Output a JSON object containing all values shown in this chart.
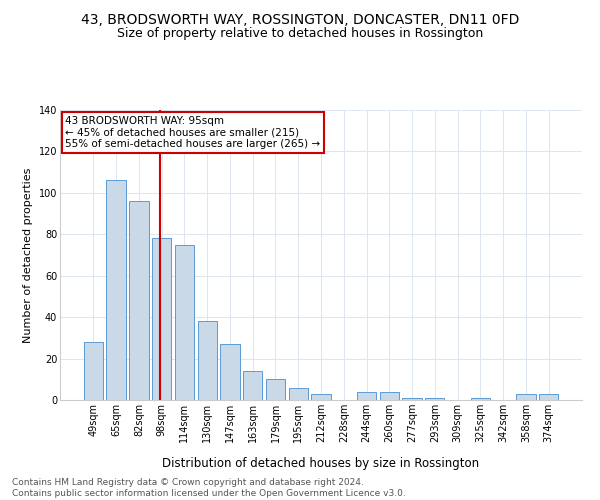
{
  "title": "43, BRODSWORTH WAY, ROSSINGTON, DONCASTER, DN11 0FD",
  "subtitle": "Size of property relative to detached houses in Rossington",
  "xlabel": "Distribution of detached houses by size in Rossington",
  "ylabel": "Number of detached properties",
  "categories": [
    "49sqm",
    "65sqm",
    "82sqm",
    "98sqm",
    "114sqm",
    "130sqm",
    "147sqm",
    "163sqm",
    "179sqm",
    "195sqm",
    "212sqm",
    "228sqm",
    "244sqm",
    "260sqm",
    "277sqm",
    "293sqm",
    "309sqm",
    "325sqm",
    "342sqm",
    "358sqm",
    "374sqm"
  ],
  "values": [
    28,
    106,
    96,
    78,
    75,
    38,
    27,
    14,
    10,
    6,
    3,
    0,
    4,
    4,
    1,
    1,
    0,
    1,
    0,
    3,
    3
  ],
  "bar_color": "#c9d9e8",
  "bar_edge_color": "#5b9bd5",
  "vline_x_index": 3,
  "vline_color": "#cc0000",
  "annotation_text": "43 BRODSWORTH WAY: 95sqm\n← 45% of detached houses are smaller (215)\n55% of semi-detached houses are larger (265) →",
  "annotation_box_color": "#ffffff",
  "annotation_box_edge": "#cc0000",
  "ylim": [
    0,
    140
  ],
  "yticks": [
    0,
    20,
    40,
    60,
    80,
    100,
    120,
    140
  ],
  "grid_color": "#dce6f0",
  "footnote": "Contains HM Land Registry data © Crown copyright and database right 2024.\nContains public sector information licensed under the Open Government Licence v3.0.",
  "title_fontsize": 10,
  "subtitle_fontsize": 9,
  "xlabel_fontsize": 8.5,
  "ylabel_fontsize": 8,
  "tick_fontsize": 7,
  "annot_fontsize": 7.5,
  "footnote_fontsize": 6.5
}
